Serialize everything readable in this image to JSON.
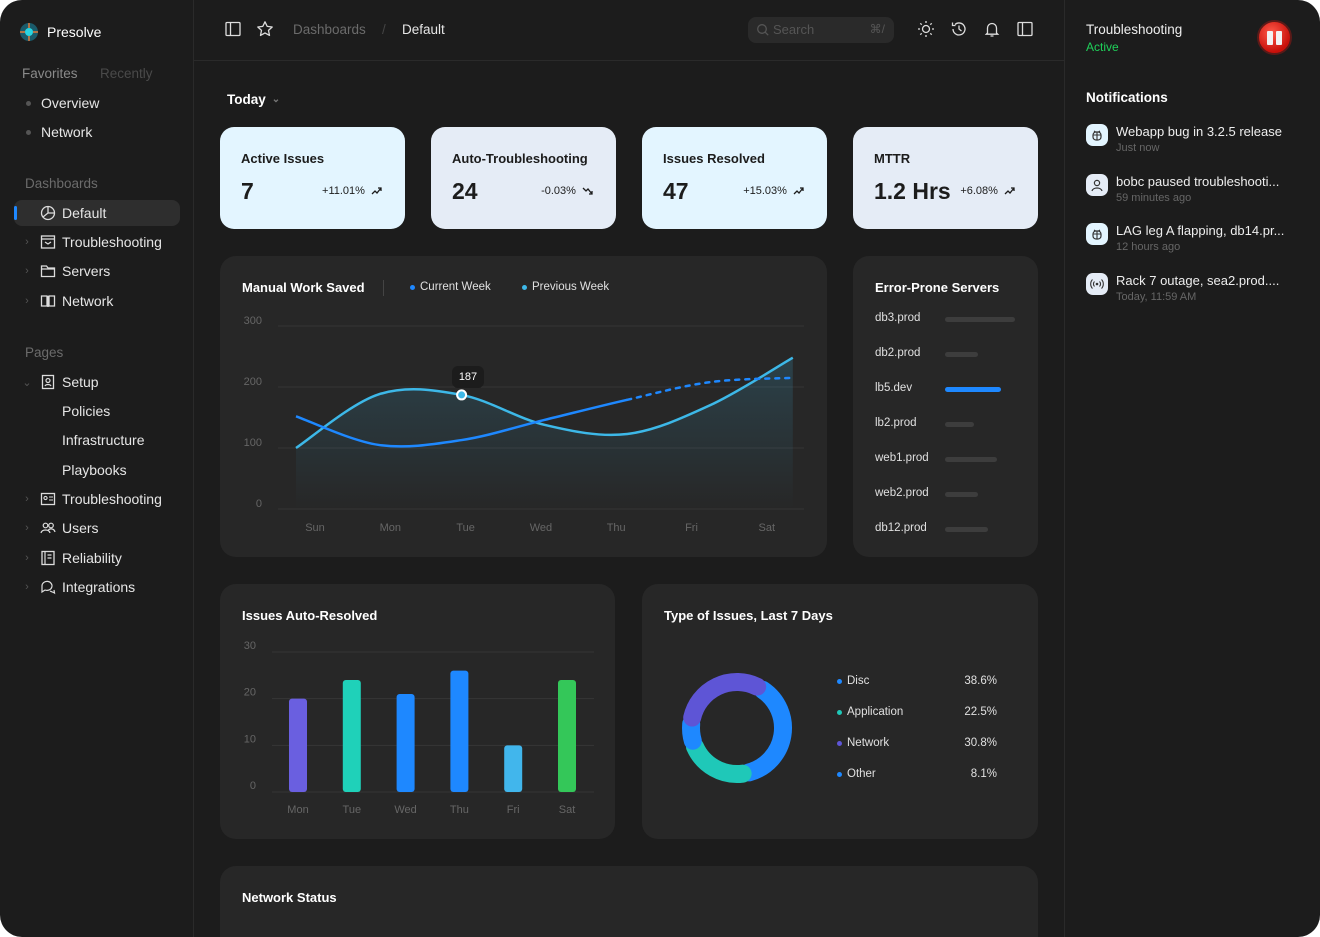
{
  "brand": {
    "name": "Presolve"
  },
  "sidebar": {
    "tabs": {
      "favorites": "Favorites",
      "recently": "Recently"
    },
    "favorites": [
      "Overview",
      "Network"
    ],
    "dashboards_label": "Dashboards",
    "dashboards": [
      "Default",
      "Troubleshooting",
      "Servers",
      "Network"
    ],
    "pages_label": "Pages",
    "pages": {
      "setup": "Setup",
      "setup_children": [
        "Policies",
        "Infrastructure",
        "Playbooks"
      ],
      "others": [
        "Troubleshooting",
        "Users",
        "Reliability",
        "Integrations"
      ]
    }
  },
  "header": {
    "breadcrumb": [
      "Dashboards",
      "Default"
    ],
    "separator": "/",
    "search_placeholder": "Search",
    "search_shortcut": "⌘/"
  },
  "filter": {
    "period": "Today"
  },
  "stats": [
    {
      "title": "Active Issues",
      "value": "7",
      "change": "+11.01%",
      "trend": "up"
    },
    {
      "title": "Auto-Troubleshooting",
      "value": "24",
      "change": "-0.03%",
      "trend": "down"
    },
    {
      "title": "Issues Resolved",
      "value": "47",
      "change": "+15.03%",
      "trend": "up"
    },
    {
      "title": "MTTR",
      "value": "1.2 Hrs",
      "change": "+6.08%",
      "trend": "up"
    }
  ],
  "servers": {
    "title": "Error-Prone Servers",
    "items": [
      {
        "name": "db3.prod",
        "value": 100
      },
      {
        "name": "db2.prod",
        "value": 47
      },
      {
        "name": "lb5.dev",
        "value": 80,
        "highlight": true
      },
      {
        "name": "lb2.prod",
        "value": 41
      },
      {
        "name": "web1.prod",
        "value": 74
      },
      {
        "name": "web2.prod",
        "value": 47
      },
      {
        "name": "db12.prod",
        "value": 61
      }
    ]
  },
  "network_status": {
    "title": "Network Status"
  },
  "right_panel": {
    "title": "Troubleshooting",
    "status": "Active",
    "notifications_label": "Notifications",
    "notifications": [
      {
        "icon": "bug-icon",
        "text": "Webapp bug in 3.2.5 release",
        "time": "Just now"
      },
      {
        "icon": "user-icon",
        "text": "bobc paused troubleshooti...",
        "time": "59 minutes ago"
      },
      {
        "icon": "bug-icon",
        "text": "LAG leg A flapping, db14.pr...",
        "time": "12 hours ago"
      },
      {
        "icon": "broadcast-icon",
        "text": "Rack 7 outage, sea2.prod....",
        "time": "Today, 11:59 AM"
      }
    ]
  },
  "colors": {
    "accent": "#1e88ff",
    "cyan": "#3db8e8",
    "teal": "#1fc8b8",
    "purple": "#5e55d6",
    "green": "#34c759",
    "active": "#1fd15a"
  },
  "chart_data": [
    {
      "type": "line",
      "title": "Manual Work Saved",
      "x": [
        "Sun",
        "Mon",
        "Tue",
        "Wed",
        "Thu",
        "Fri",
        "Sat"
      ],
      "yticks": [
        "300",
        "200",
        "100",
        "0"
      ],
      "ylim": [
        0,
        300
      ],
      "series": [
        {
          "name": "Current Week",
          "values": [
            152,
            105,
            113,
            146,
            179,
            208,
            215
          ],
          "projected_from": "Thu"
        },
        {
          "name": "Previous Week",
          "values": [
            100,
            188,
            187,
            138,
            123,
            170,
            248
          ]
        }
      ],
      "annotation": {
        "x": "Tue",
        "label": "187"
      }
    },
    {
      "type": "bar",
      "title": "Issues Auto-Resolved",
      "categories": [
        "Mon",
        "Tue",
        "Wed",
        "Thu",
        "Fri",
        "Sat"
      ],
      "values": [
        20,
        24,
        21,
        26,
        10,
        24
      ],
      "yticks": [
        "30",
        "20",
        "10",
        "0"
      ],
      "ylim": [
        0,
        30
      ],
      "colors": [
        "#6a5fe0",
        "#1fd1b9",
        "#1e88ff",
        "#1e88ff",
        "#41b6ec",
        "#34c759"
      ]
    },
    {
      "type": "pie",
      "title": "Type of Issues, Last 7 Days",
      "slices": [
        {
          "label": "Disc",
          "value": "38.6%",
          "pct": 38.6,
          "color": "#1e88ff"
        },
        {
          "label": "Application",
          "value": "22.5%",
          "pct": 22.5,
          "color": "#1fc8b8"
        },
        {
          "label": "Network",
          "value": "30.8%",
          "pct": 30.8,
          "color": "#5e55d6"
        },
        {
          "label": "Other",
          "value": "8.1%",
          "pct": 8.1,
          "color": "#1e88ff"
        }
      ]
    }
  ]
}
